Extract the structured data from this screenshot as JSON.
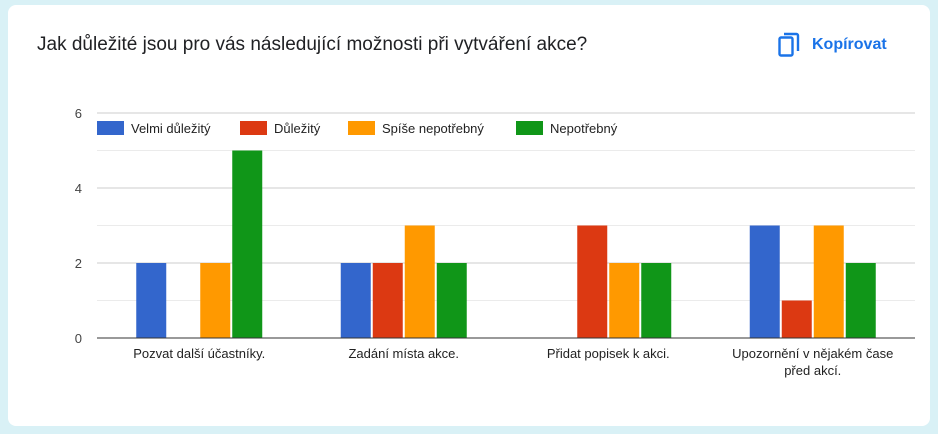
{
  "title": "Jak důležité jsou pro vás následující možnosti při vytváření akce?",
  "copy_button": {
    "label": "Kopírovat",
    "icon": "copy-icon"
  },
  "colors": {
    "accent": "#1a73e8"
  },
  "chart_data": {
    "type": "bar",
    "categories": [
      [
        "Pozvat další účastníky."
      ],
      [
        "Zadání místa akce."
      ],
      [
        "Přidat popisek k akci."
      ],
      [
        "Upozornění v nějakém čase",
        "před akcí."
      ]
    ],
    "series": [
      {
        "name": "Velmi důležitý",
        "color": "#3366cc",
        "values": [
          2,
          2,
          0,
          3
        ]
      },
      {
        "name": "Důležitý",
        "color": "#dc3912",
        "values": [
          0,
          2,
          3,
          1
        ]
      },
      {
        "name": "Spíše nepotřebný",
        "color": "#ff9900",
        "values": [
          2,
          3,
          2,
          3
        ]
      },
      {
        "name": "Nepotřebný",
        "color": "#109618",
        "values": [
          5,
          2,
          2,
          2
        ]
      }
    ],
    "ylim": [
      0,
      6
    ],
    "yticks": [
      0,
      2,
      4,
      6
    ],
    "grid": true,
    "legend_position": "top-left"
  }
}
